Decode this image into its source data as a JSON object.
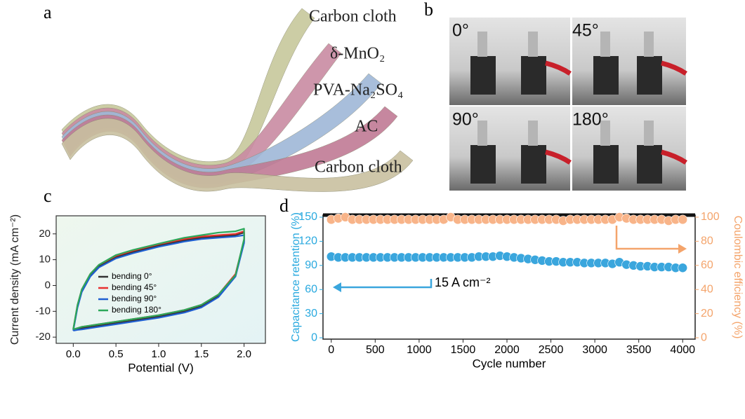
{
  "panel_labels": [
    "a",
    "b",
    "c",
    "d"
  ],
  "diagram": {
    "layers": [
      "Carbon cloth",
      "δ-MnO₂",
      "PVA-Na₂SO₄",
      "AC",
      "Carbon cloth"
    ]
  },
  "photos": {
    "labels": [
      "0°",
      "45°",
      "90°",
      "180°"
    ]
  },
  "chart_data": [
    {
      "type": "line",
      "xlabel": "Potential (V)",
      "ylabel": "Current density (mA cm⁻²)",
      "xlim": [
        -0.2,
        2.25
      ],
      "ylim": [
        -22.4,
        27
      ],
      "xticks": [
        {
          "value": 0,
          "label": "0.0"
        },
        0.5,
        {
          "value": 1,
          "label": "1.0"
        },
        1.5,
        {
          "value": 2,
          "label": "2.0"
        }
      ],
      "yticks": [
        -20,
        -10,
        0,
        10,
        20
      ],
      "legend": "center left",
      "x": [
        0,
        0.05,
        0.1,
        0.2,
        0.3,
        0.5,
        0.7,
        1.0,
        1.3,
        1.5,
        1.7,
        1.9,
        2.0,
        2.0,
        1.9,
        1.7,
        1.5,
        1.3,
        1.0,
        0.7,
        0.5,
        0.3,
        0.1,
        0.05,
        0
      ],
      "series": [
        {
          "name": "bending 0°",
          "color": "#333333",
          "values": [
            -17,
            -8,
            -2,
            4,
            7.5,
            11,
            13,
            15.5,
            17.5,
            18.5,
            19,
            19.5,
            20.5,
            17,
            4,
            -4,
            -8,
            -10,
            -12,
            -13.5,
            -14.5,
            -15.5,
            -16.5,
            -16.8,
            -17
          ]
        },
        {
          "name": "bending 45°",
          "color": "#e8312f",
          "values": [
            -17,
            -7.5,
            -1.5,
            4.5,
            8,
            11.5,
            13.5,
            16,
            18,
            19,
            19.5,
            20,
            21,
            17.5,
            4.5,
            -3.5,
            -7.5,
            -9.5,
            -11.5,
            -13,
            -14,
            -15,
            -16,
            -16.5,
            -17
          ]
        },
        {
          "name": "bending 90°",
          "color": "#1f5fd1",
          "values": [
            -17.5,
            -8.5,
            -2.5,
            3.5,
            7,
            10.5,
            12.5,
            15,
            17,
            18,
            18.5,
            19,
            19.5,
            16.5,
            3.5,
            -4.5,
            -8.5,
            -10.5,
            -12.5,
            -14,
            -15,
            -16,
            -17,
            -17.2,
            -17.5
          ]
        },
        {
          "name": "bending 180°",
          "color": "#2ca85a",
          "values": [
            -17,
            -7.5,
            -1.5,
            4.5,
            8,
            11.8,
            13.8,
            16.2,
            18.5,
            19.5,
            20.5,
            21,
            22,
            18,
            4,
            -3.5,
            -7.5,
            -9.5,
            -11.5,
            -13,
            -14,
            -15,
            -16,
            -16.5,
            -17
          ]
        }
      ]
    },
    {
      "type": "scatter",
      "xlabel": "Cycle number",
      "ylabel": "Capacitance retention (%)",
      "y2label": "Coulombic efficiency (%)",
      "annotation": "15 A cm⁻²",
      "y_color": "#29a9df",
      "y2_color": "#f4a46b",
      "xlim": [
        -94,
        4142
      ],
      "ylim": [
        -1.7,
        152.6
      ],
      "y2lim": [
        -1.13,
        101.7
      ],
      "xticks": [
        0,
        500,
        1000,
        1500,
        2000,
        2500,
        3000,
        3500,
        4000
      ],
      "yticks": [
        0,
        30,
        60,
        90,
        120,
        150
      ],
      "y2ticks": [
        0,
        20,
        40,
        60,
        80,
        100
      ],
      "x": [
        0,
        80,
        160,
        240,
        320,
        400,
        480,
        560,
        640,
        720,
        800,
        880,
        960,
        1040,
        1120,
        1200,
        1280,
        1360,
        1440,
        1520,
        1600,
        1680,
        1760,
        1840,
        1920,
        2000,
        2080,
        2160,
        2240,
        2320,
        2400,
        2480,
        2560,
        2640,
        2720,
        2800,
        2880,
        2960,
        3040,
        3120,
        3200,
        3280,
        3360,
        3440,
        3520,
        3600,
        3680,
        3760,
        3840,
        3920,
        4000
      ],
      "series": [
        {
          "color": "#3aa6dd",
          "values": [
            101,
            100,
            100,
            100,
            100,
            100,
            100,
            100,
            100,
            100,
            100,
            100,
            100,
            100,
            100,
            100,
            100,
            100,
            100,
            100,
            100,
            101,
            101,
            101,
            102,
            101,
            100,
            99,
            98,
            97,
            96,
            95,
            95,
            94,
            94,
            94,
            93,
            93,
            93,
            93,
            92,
            94,
            91,
            90,
            89,
            89,
            88,
            88,
            88,
            87,
            87
          ]
        },
        {
          "color": "#f8b489",
          "axis": "y2",
          "values": [
            98,
            99,
            100,
            98,
            98,
            98,
            98,
            98,
            98,
            98,
            98,
            98,
            98,
            98,
            98,
            98,
            98,
            100,
            98,
            98,
            98,
            98,
            98,
            98,
            98,
            98,
            98,
            98,
            98,
            98,
            98,
            98,
            98,
            97,
            98,
            98,
            98,
            98,
            98,
            98,
            98,
            100,
            99,
            98,
            98,
            98,
            98,
            98,
            97,
            98,
            98
          ]
        }
      ]
    }
  ]
}
